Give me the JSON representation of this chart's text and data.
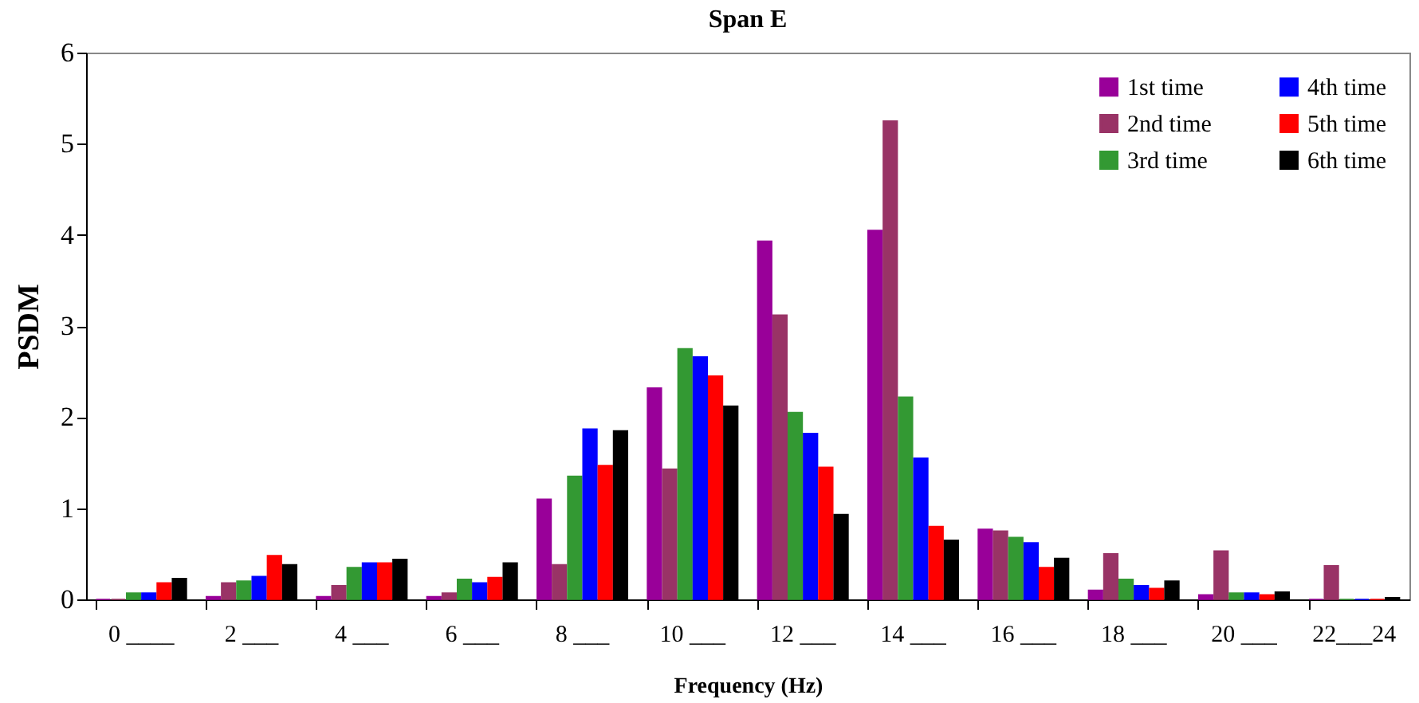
{
  "chart_data": {
    "type": "bar",
    "title": "Span E",
    "xlabel": "Frequency (Hz)",
    "ylabel": "PSDM",
    "categories": [
      "0 ____",
      "2 ___",
      "4 ___",
      "6 ___",
      "8 ___",
      "10 ___",
      "12 ___",
      "14 ___",
      "16 ___",
      "18 ___",
      "20 ___",
      "22___24"
    ],
    "series": [
      {
        "name": "1st time",
        "color": "#990099",
        "values": [
          0,
          0.03,
          0.03,
          0.03,
          1.1,
          2.32,
          3.93,
          4.05,
          0.77,
          0.1,
          0.05,
          0
        ]
      },
      {
        "name": "2nd time",
        "color": "#993366",
        "values": [
          0,
          0.18,
          0.15,
          0.07,
          0.38,
          1.43,
          3.12,
          5.25,
          0.75,
          0.5,
          0.53,
          0.37
        ]
      },
      {
        "name": "3rd time",
        "color": "#339933",
        "values": [
          0.07,
          0.2,
          0.35,
          0.22,
          1.35,
          2.75,
          2.05,
          2.22,
          0.68,
          0.22,
          0.07,
          0
        ]
      },
      {
        "name": "4th time",
        "color": "#0000ff",
        "values": [
          0.07,
          0.25,
          0.4,
          0.18,
          1.87,
          2.66,
          1.82,
          1.55,
          0.62,
          0.15,
          0.07,
          0
        ]
      },
      {
        "name": "5th time",
        "color": "#ff0000",
        "values": [
          0.18,
          0.48,
          0.4,
          0.24,
          1.47,
          2.45,
          1.45,
          0.8,
          0.35,
          0.12,
          0.05,
          0
        ]
      },
      {
        "name": "6th time",
        "color": "#000000",
        "values": [
          0.23,
          0.38,
          0.44,
          0.4,
          1.85,
          2.12,
          0.93,
          0.65,
          0.45,
          0.2,
          0.08,
          0.02
        ]
      }
    ],
    "ylim": [
      0,
      6
    ],
    "yticks": [
      0,
      1,
      2,
      3,
      4,
      5,
      6
    ],
    "grid": false,
    "legend": "top right"
  }
}
